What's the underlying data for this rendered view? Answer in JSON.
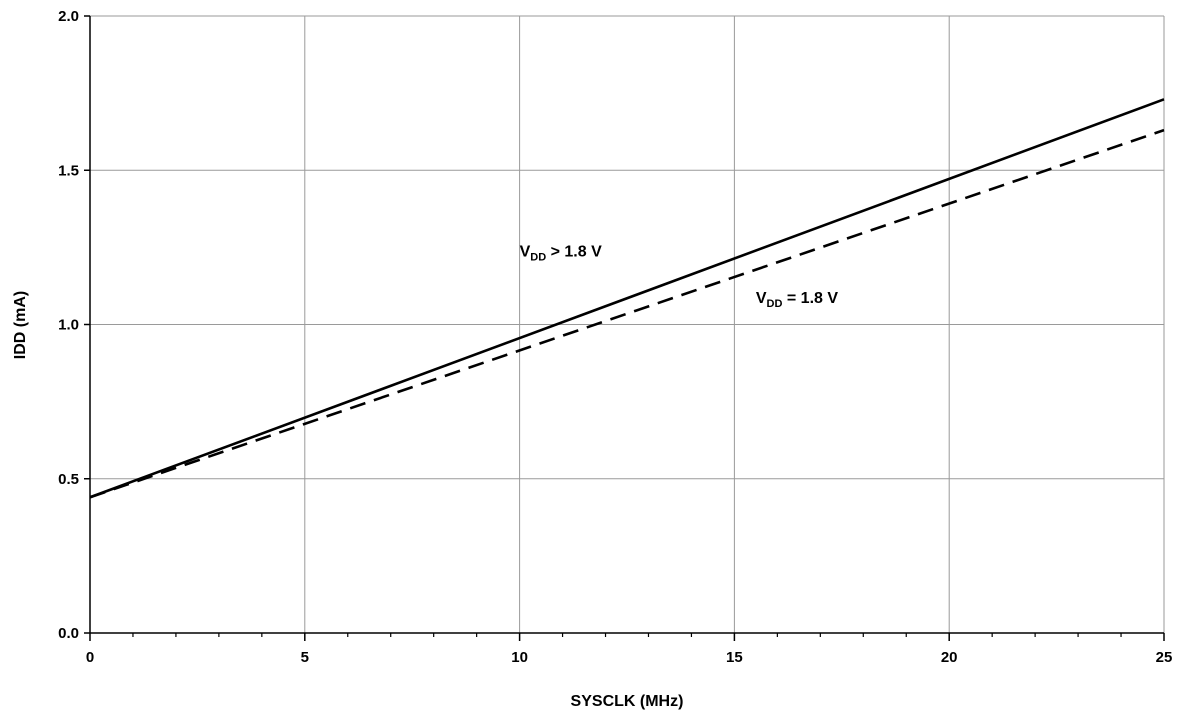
{
  "chart_data": {
    "type": "line",
    "title": "",
    "xlabel": "SYSCLK (MHz)",
    "ylabel": "IDD (mA)",
    "xlim": [
      0,
      25
    ],
    "ylim": [
      0,
      2.0
    ],
    "x_ticks": [
      0,
      5,
      10,
      15,
      20,
      25
    ],
    "x_tick_labels": [
      "0",
      "5",
      "10",
      "15",
      "20",
      "25"
    ],
    "y_ticks": [
      0,
      0.5,
      1.0,
      1.5,
      2.0
    ],
    "y_tick_labels": [
      "0.0",
      "0.5",
      "1.0",
      "1.5",
      "2.0"
    ],
    "x_minor_step": 1,
    "grid": true,
    "legend": "none",
    "series": [
      {
        "name": "VDD > 1.8 V",
        "line_style": "solid",
        "color": "#000000",
        "x": [
          0,
          25
        ],
        "y": [
          0.44,
          1.73
        ]
      },
      {
        "name": "VDD = 1.8 V",
        "line_style": "dashed",
        "color": "#000000",
        "x": [
          0,
          25
        ],
        "y": [
          0.44,
          1.63
        ]
      }
    ],
    "annotations": [
      {
        "series_index": 0,
        "main": "V",
        "sub": "DD",
        "rest": "  > 1.8 V",
        "x": 10.0,
        "y": 1.22
      },
      {
        "series_index": 1,
        "main": "V",
        "sub": "DD",
        "rest": "  = 1.8 V",
        "x": 15.5,
        "y": 1.07
      }
    ]
  }
}
